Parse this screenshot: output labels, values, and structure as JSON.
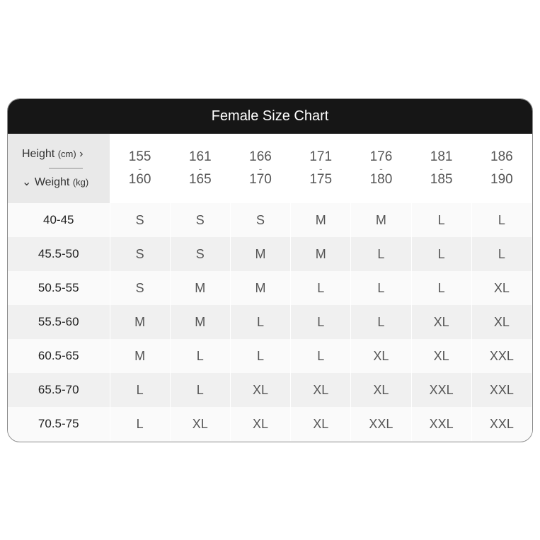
{
  "title": "Female Size Chart",
  "corner": {
    "height_label": "Height",
    "height_unit": "(cm)",
    "height_arrow": "›",
    "weight_arrow": "⌄",
    "weight_label": "Weight",
    "weight_unit": "(kg)"
  },
  "heights": [
    [
      "155",
      "160"
    ],
    [
      "161",
      "165"
    ],
    [
      "166",
      "170"
    ],
    [
      "171",
      "175"
    ],
    [
      "176",
      "180"
    ],
    [
      "181",
      "185"
    ],
    [
      "186",
      "190"
    ]
  ],
  "rows": [
    {
      "weight": "40-45",
      "sizes": [
        "S",
        "S",
        "S",
        "M",
        "M",
        "L",
        "L"
      ]
    },
    {
      "weight": "45.5-50",
      "sizes": [
        "S",
        "S",
        "M",
        "M",
        "L",
        "L",
        "L"
      ]
    },
    {
      "weight": "50.5-55",
      "sizes": [
        "S",
        "M",
        "M",
        "L",
        "L",
        "L",
        "XL"
      ]
    },
    {
      "weight": "55.5-60",
      "sizes": [
        "M",
        "M",
        "L",
        "L",
        "L",
        "XL",
        "XL"
      ]
    },
    {
      "weight": "60.5-65",
      "sizes": [
        "M",
        "L",
        "L",
        "L",
        "XL",
        "XL",
        "XXL"
      ]
    },
    {
      "weight": "65.5-70",
      "sizes": [
        "L",
        "L",
        "XL",
        "XL",
        "XL",
        "XXL",
        "XXL"
      ]
    },
    {
      "weight": "70.5-75",
      "sizes": [
        "L",
        "XL",
        "XL",
        "XL",
        "XXL",
        "XXL",
        "XXL"
      ]
    }
  ]
}
